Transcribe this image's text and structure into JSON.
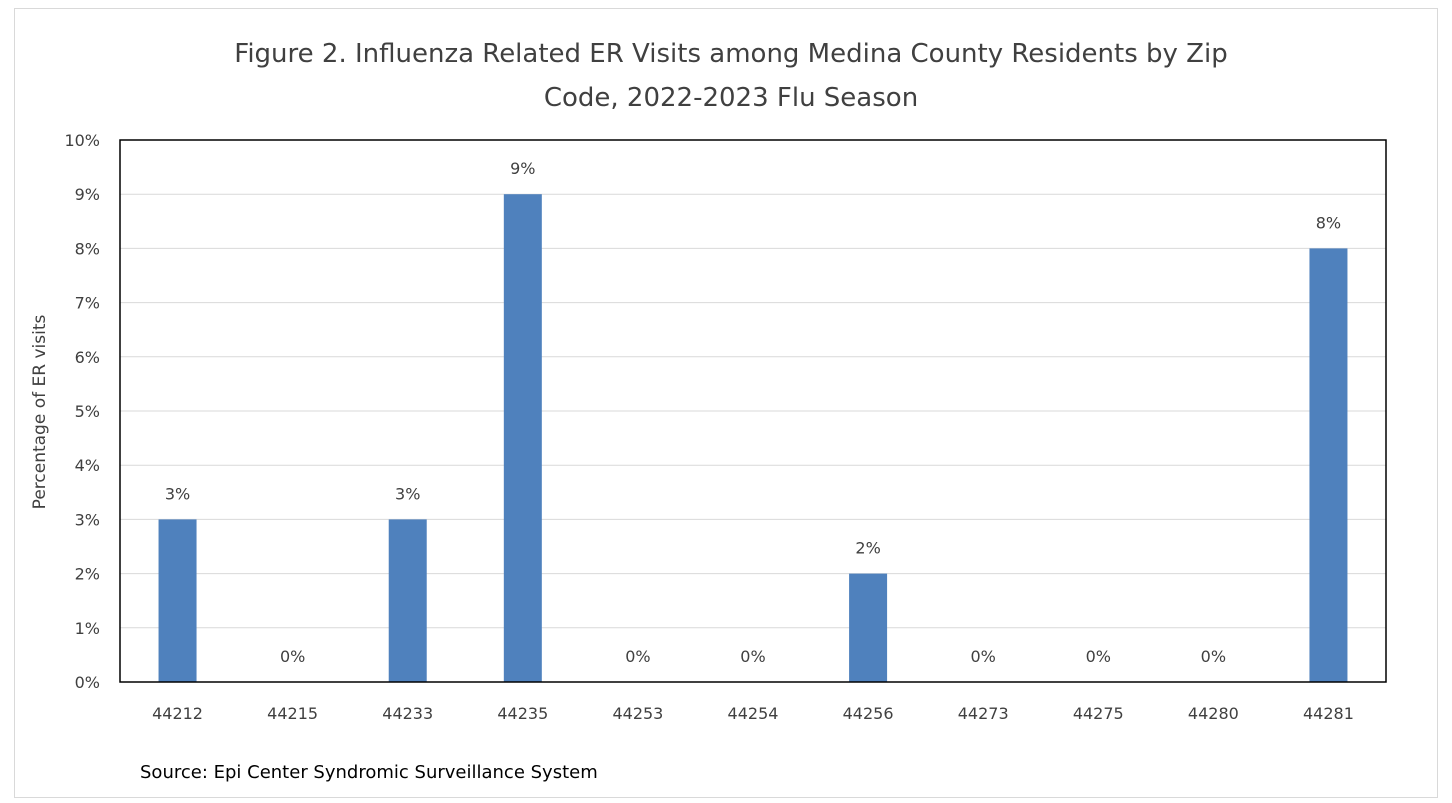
{
  "chart_data": {
    "type": "bar",
    "title_lines": [
      "Figure 2. Influenza Related ER Visits among Medina County Residents by Zip",
      "Code, 2022-2023 Flu Season"
    ],
    "xlabel": "",
    "ylabel": "Percentage of ER visits",
    "categories": [
      "44212",
      "44215",
      "44233",
      "44235",
      "44253",
      "44254",
      "44256",
      "44273",
      "44275",
      "44280",
      "44281"
    ],
    "values": [
      3,
      0,
      3,
      9,
      0,
      0,
      2,
      0,
      0,
      0,
      8
    ],
    "data_labels": [
      "3%",
      "0%",
      "3%",
      "9%",
      "0%",
      "0%",
      "2%",
      "0%",
      "0%",
      "0%",
      "8%"
    ],
    "ylim": [
      0,
      10
    ],
    "y_ticks": [
      "0%",
      "1%",
      "2%",
      "3%",
      "4%",
      "5%",
      "6%",
      "7%",
      "8%",
      "9%",
      "10%"
    ],
    "y_tick_values": [
      0,
      1,
      2,
      3,
      4,
      5,
      6,
      7,
      8,
      9,
      10
    ],
    "grid": true,
    "legend": "none",
    "bar_color": "#4f81bd",
    "gridline_color": "#d9d9d9",
    "source": "Source: Epi Center Syndromic Surveillance System"
  }
}
